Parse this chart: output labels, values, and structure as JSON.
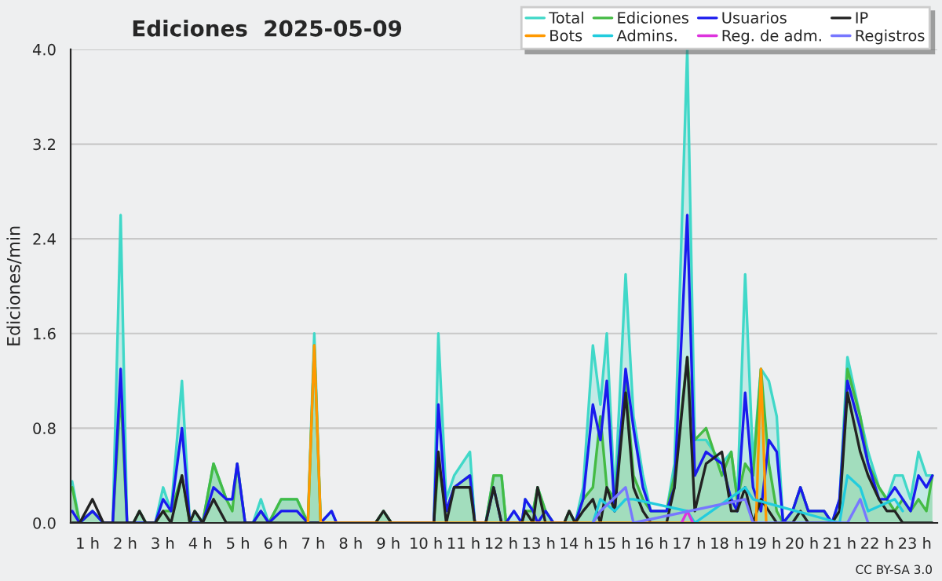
{
  "chart_data": {
    "type": "line",
    "title": "Ediciones  2025-05-09",
    "ylabel": "Ediciones/min",
    "annotations": [
      "CC BY-SA 3.0"
    ],
    "xlim": [
      0.55,
      23.6
    ],
    "ylim": [
      0,
      4.0
    ],
    "xticks": [
      {
        "value": 1,
        "label": "1 h"
      },
      {
        "value": 2,
        "label": "2 h"
      },
      {
        "value": 3,
        "label": "3 h"
      },
      {
        "value": 4,
        "label": "4 h"
      },
      {
        "value": 5,
        "label": "5 h"
      },
      {
        "value": 6,
        "label": "6 h"
      },
      {
        "value": 7,
        "label": "7 h"
      },
      {
        "value": 8,
        "label": "8 h"
      },
      {
        "value": 9,
        "label": "9 h"
      },
      {
        "value": 10,
        "label": "10 h"
      },
      {
        "value": 11,
        "label": "11 h"
      },
      {
        "value": 12,
        "label": "12 h"
      },
      {
        "value": 13,
        "label": "13 h"
      },
      {
        "value": 14,
        "label": "14 h"
      },
      {
        "value": 15,
        "label": "15 h"
      },
      {
        "value": 16,
        "label": "16 h"
      },
      {
        "value": 17,
        "label": "17 h"
      },
      {
        "value": 18,
        "label": "18 h"
      },
      {
        "value": 19,
        "label": "19 h"
      },
      {
        "value": 20,
        "label": "20 h"
      },
      {
        "value": 21,
        "label": "21 h"
      },
      {
        "value": 22,
        "label": "22 h"
      },
      {
        "value": 23,
        "label": "23 h"
      }
    ],
    "yticks": [
      {
        "value": 0,
        "label": "0.0"
      },
      {
        "value": 0.8,
        "label": "0.8"
      },
      {
        "value": 1.6,
        "label": "1.6"
      },
      {
        "value": 2.4,
        "label": "2.4"
      },
      {
        "value": 3.2,
        "label": "3.2"
      },
      {
        "value": 4.0,
        "label": "4.0"
      }
    ],
    "grid": "y",
    "legend": "top right",
    "x": [
      0.59,
      0.79,
      1.13,
      1.42,
      1.67,
      1.88,
      2.05,
      2.22,
      2.38,
      2.55,
      2.8,
      3.01,
      3.22,
      3.51,
      3.72,
      3.85,
      4.06,
      4.35,
      4.69,
      4.85,
      4.98,
      5.19,
      5.4,
      5.61,
      5.82,
      6.15,
      6.57,
      6.86,
      7.03,
      7.2,
      7.49,
      7.62,
      8.66,
      8.87,
      9.08,
      10.21,
      10.33,
      10.54,
      10.75,
      11.17,
      11.3,
      11.59,
      11.8,
      12.01,
      12.13,
      12.34,
      12.55,
      12.64,
      12.85,
      12.97,
      13.18,
      13.39,
      13.68,
      13.81,
      13.97,
      14.18,
      14.44,
      14.64,
      14.81,
      15.02,
      15.31,
      15.52,
      15.77,
      15.98,
      16.4,
      16.61,
      16.95,
      17.15,
      17.45,
      17.87,
      18.12,
      18.28,
      18.49,
      18.7,
      18.91,
      19.12,
      19.33,
      19.5,
      19.75,
      19.96,
      20.17,
      20.59,
      20.8,
      21.0,
      21.21,
      21.55,
      21.76,
      22.05,
      22.26,
      22.47,
      22.68,
      22.89,
      23.1,
      23.31,
      23.47
    ],
    "series": [
      {
        "name": "Total",
        "type": "area",
        "color": "#40d8c8",
        "values": [
          0.35,
          0,
          0.1,
          0,
          0,
          2.6,
          0,
          0,
          0.1,
          0,
          0,
          0.3,
          0.1,
          1.2,
          0,
          0.1,
          0,
          0.5,
          0.2,
          0.2,
          0.5,
          0,
          0,
          0.2,
          0,
          0.2,
          0.2,
          0,
          1.6,
          0,
          0.1,
          0,
          0,
          0.1,
          0,
          0,
          1.6,
          0.2,
          0.4,
          0.6,
          0,
          0,
          0.4,
          0.4,
          0,
          0.1,
          0,
          0.2,
          0.1,
          0.3,
          0.1,
          0,
          0,
          0.1,
          0,
          0.3,
          1.5,
          1.0,
          1.6,
          0.2,
          2.1,
          0.9,
          0.4,
          0.1,
          0.1,
          0.5,
          4.0,
          0.7,
          0.7,
          0.5,
          0.6,
          0.2,
          2.1,
          0.5,
          1.3,
          1.2,
          0.9,
          0,
          0.1,
          0.3,
          0.1,
          0.1,
          0,
          0.2,
          1.4,
          0.9,
          0.6,
          0.3,
          0.2,
          0.4,
          0.4,
          0.2,
          0.6,
          0.4,
          0.4
        ]
      },
      {
        "name": "Ediciones",
        "type": "area",
        "color": "#44bb44",
        "values": [
          0.3,
          0,
          0.1,
          0,
          0,
          1.1,
          0,
          0,
          0.1,
          0,
          0,
          0.1,
          0.1,
          0.4,
          0,
          0.1,
          0,
          0.5,
          0.2,
          0.1,
          0.5,
          0,
          0,
          0.1,
          0,
          0.2,
          0.2,
          0,
          1.5,
          0,
          0,
          0,
          0,
          0.1,
          0,
          0,
          0.5,
          0.1,
          0.3,
          0.4,
          0,
          0,
          0.4,
          0.4,
          0,
          0,
          0,
          0.1,
          0.1,
          0.3,
          0.1,
          0,
          0,
          0.1,
          0,
          0.2,
          0.3,
          0.9,
          0.3,
          0.2,
          1.2,
          0.4,
          0.2,
          0.1,
          0.1,
          0.4,
          1.4,
          0.7,
          0.8,
          0.4,
          0.6,
          0.2,
          0.5,
          0.4,
          1.3,
          0.5,
          0.1,
          0,
          0.1,
          0.3,
          0.1,
          0.1,
          0,
          0.1,
          1.3,
          0.9,
          0.5,
          0.3,
          0.2,
          0.1,
          0.2,
          0.1,
          0.2,
          0.1,
          0.4
        ]
      },
      {
        "name": "Usuarios",
        "color": "#1a1aee",
        "values": [
          0.1,
          0,
          0.1,
          0,
          0,
          1.3,
          0,
          0,
          0,
          0,
          0,
          0.2,
          0.1,
          0.8,
          0,
          0,
          0,
          0.3,
          0.2,
          0.2,
          0.5,
          0,
          0,
          0.1,
          0,
          0.1,
          0.1,
          0,
          0,
          0,
          0.1,
          0,
          0,
          0,
          0,
          0,
          1.0,
          0.1,
          0.3,
          0.4,
          0,
          0,
          0.3,
          0,
          0,
          0.1,
          0,
          0.2,
          0.1,
          0,
          0.1,
          0,
          0,
          0,
          0,
          0.2,
          1.0,
          0.7,
          1.2,
          0.1,
          1.3,
          0.8,
          0.3,
          0.1,
          0.1,
          0.3,
          2.6,
          0.4,
          0.6,
          0.5,
          0.2,
          0.1,
          1.1,
          0.3,
          0.1,
          0.7,
          0.6,
          0,
          0.1,
          0.3,
          0.1,
          0.1,
          0,
          0.2,
          1.2,
          0.8,
          0.5,
          0.2,
          0.2,
          0.3,
          0.2,
          0.1,
          0.4,
          0.3,
          0.4
        ]
      },
      {
        "name": "IP",
        "color": "#222222",
        "values": [
          0,
          0,
          0.2,
          0,
          0,
          0,
          0,
          0,
          0.1,
          0,
          0,
          0.1,
          0,
          0.4,
          0,
          0.1,
          0,
          0.2,
          0,
          0,
          0,
          0,
          0,
          0,
          0,
          0,
          0,
          0,
          0,
          0,
          0,
          0,
          0,
          0.1,
          0,
          0,
          0.6,
          0,
          0.3,
          0.3,
          0,
          0,
          0.3,
          0,
          0,
          0,
          0,
          0.1,
          0,
          0.3,
          0,
          0,
          0,
          0.1,
          0,
          0.1,
          0.2,
          0,
          0.3,
          0.1,
          1.1,
          0.3,
          0.1,
          0,
          0,
          0.3,
          1.4,
          0.1,
          0.5,
          0.6,
          0.1,
          0.1,
          0.3,
          0,
          0.2,
          0.1,
          0,
          0,
          0,
          0.1,
          0,
          0,
          0,
          0.1,
          1.1,
          0.6,
          0.4,
          0.2,
          0.1,
          0.1,
          0,
          0,
          0,
          0,
          0
        ]
      },
      {
        "name": "Bots",
        "color": "#ff9900",
        "x": [
          6.86,
          7.03,
          7.2,
          18.78,
          18.91,
          19.05
        ],
        "values": [
          0,
          1.5,
          0,
          0,
          1.3,
          0
        ]
      },
      {
        "name": "Admins.",
        "color": "#22ccdd",
        "x": [
          14.44,
          14.64,
          15.02,
          15.31,
          15.52,
          16.95,
          17.15,
          18.49,
          18.7,
          21.0,
          21.21,
          21.55,
          21.76,
          22.47,
          22.68
        ],
        "values": [
          0,
          0.2,
          0.1,
          0.2,
          0.2,
          0.1,
          0,
          0.3,
          0.2,
          0,
          0.4,
          0.3,
          0.1,
          0.2,
          0.1
        ]
      },
      {
        "name": "Reg. de adm.",
        "color": "#dd33dd",
        "x": [
          16.8,
          16.95,
          17.1
        ],
        "values": [
          0,
          0.1,
          0
        ]
      },
      {
        "name": "Registros",
        "color": "#7777ff",
        "x": [
          14.44,
          14.64,
          15.31,
          15.52,
          18.49,
          18.7,
          21.21,
          21.55,
          21.76
        ],
        "values": [
          0,
          0.1,
          0.3,
          0,
          0.2,
          0,
          0,
          0.2,
          0
        ]
      }
    ]
  }
}
